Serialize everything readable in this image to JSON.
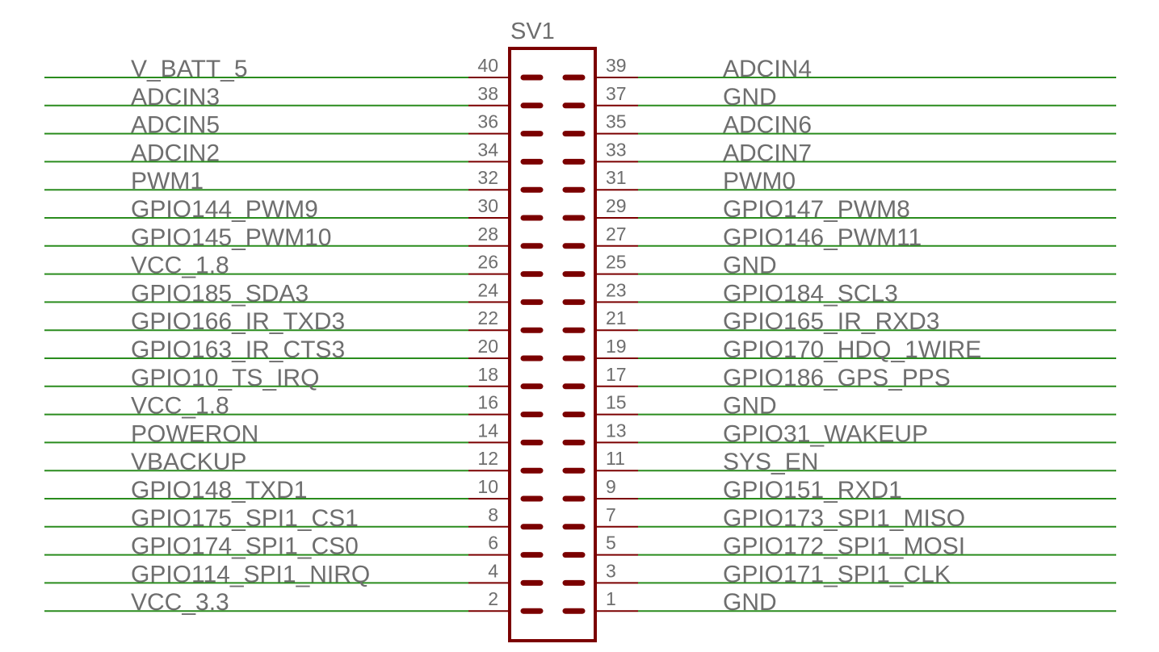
{
  "header": {
    "name": "SV1"
  },
  "colors": {
    "net": "#2a8c1e",
    "part": "#7b0000",
    "text": "#6e6e6e"
  },
  "rows": [
    {
      "left_pin": "40",
      "left_signal": "V_BATT_5",
      "right_pin": "39",
      "right_signal": "ADCIN4"
    },
    {
      "left_pin": "38",
      "left_signal": "ADCIN3",
      "right_pin": "37",
      "right_signal": "GND"
    },
    {
      "left_pin": "36",
      "left_signal": "ADCIN5",
      "right_pin": "35",
      "right_signal": "ADCIN6"
    },
    {
      "left_pin": "34",
      "left_signal": "ADCIN2",
      "right_pin": "33",
      "right_signal": "ADCIN7"
    },
    {
      "left_pin": "32",
      "left_signal": "PWM1",
      "right_pin": "31",
      "right_signal": "PWM0"
    },
    {
      "left_pin": "30",
      "left_signal": "GPIO144_PWM9",
      "right_pin": "29",
      "right_signal": "GPIO147_PWM8"
    },
    {
      "left_pin": "28",
      "left_signal": "GPIO145_PWM10",
      "right_pin": "27",
      "right_signal": "GPIO146_PWM11"
    },
    {
      "left_pin": "26",
      "left_signal": "VCC_1.8",
      "right_pin": "25",
      "right_signal": "GND"
    },
    {
      "left_pin": "24",
      "left_signal": "GPIO185_SDA3",
      "right_pin": "23",
      "right_signal": "GPIO184_SCL3"
    },
    {
      "left_pin": "22",
      "left_signal": "GPIO166_IR_TXD3",
      "right_pin": "21",
      "right_signal": "GPIO165_IR_RXD3"
    },
    {
      "left_pin": "20",
      "left_signal": "GPIO163_IR_CTS3",
      "right_pin": "19",
      "right_signal": "GPIO170_HDQ_1WIRE"
    },
    {
      "left_pin": "18",
      "left_signal": "GPIO10_TS_IRQ",
      "right_pin": "17",
      "right_signal": "GPIO186_GPS_PPS"
    },
    {
      "left_pin": "16",
      "left_signal": "VCC_1.8",
      "right_pin": "15",
      "right_signal": "GND"
    },
    {
      "left_pin": "14",
      "left_signal": "POWERON",
      "right_pin": "13",
      "right_signal": "GPIO31_WAKEUP"
    },
    {
      "left_pin": "12",
      "left_signal": "VBACKUP",
      "right_pin": "11",
      "right_signal": "SYS_EN"
    },
    {
      "left_pin": "10",
      "left_signal": "GPIO148_TXD1",
      "right_pin": "9",
      "right_signal": "GPIO151_RXD1"
    },
    {
      "left_pin": "8",
      "left_signal": "GPIO175_SPI1_CS1",
      "right_pin": "7",
      "right_signal": "GPIO173_SPI1_MISO"
    },
    {
      "left_pin": "6",
      "left_signal": "GPIO174_SPI1_CS0",
      "right_pin": "5",
      "right_signal": "GPIO172_SPI1_MOSI"
    },
    {
      "left_pin": "4",
      "left_signal": "GPIO114_SPI1_NIRQ",
      "right_pin": "3",
      "right_signal": "GPIO171_SPI1_CLK"
    },
    {
      "left_pin": "2",
      "left_signal": "VCC_3.3",
      "right_pin": "1",
      "right_signal": "GND"
    }
  ]
}
